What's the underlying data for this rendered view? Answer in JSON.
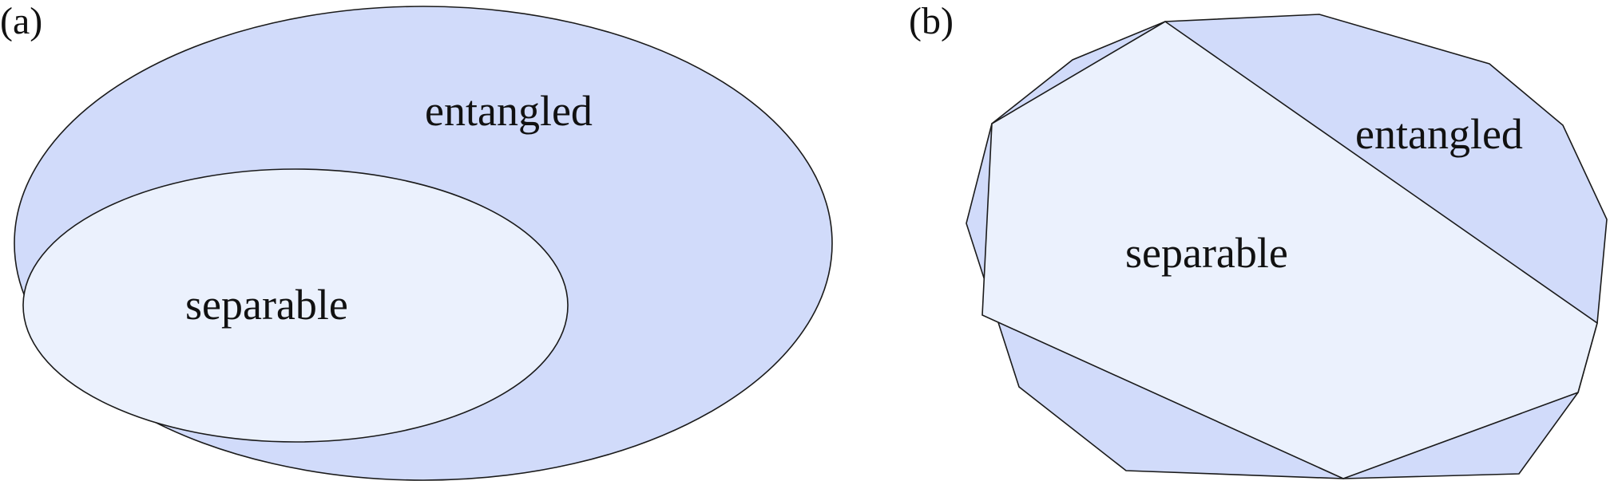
{
  "panel_a": {
    "tag": "(a)",
    "outer_label": "entangled",
    "inner_label": "separable"
  },
  "panel_b": {
    "tag": "(b)",
    "outer_label": "entangled",
    "inner_label": "separable"
  },
  "colors": {
    "entangled_fill": "#d1dbfa",
    "separable_fill": "#ebf1fd",
    "outline": "#1a1a1a"
  }
}
